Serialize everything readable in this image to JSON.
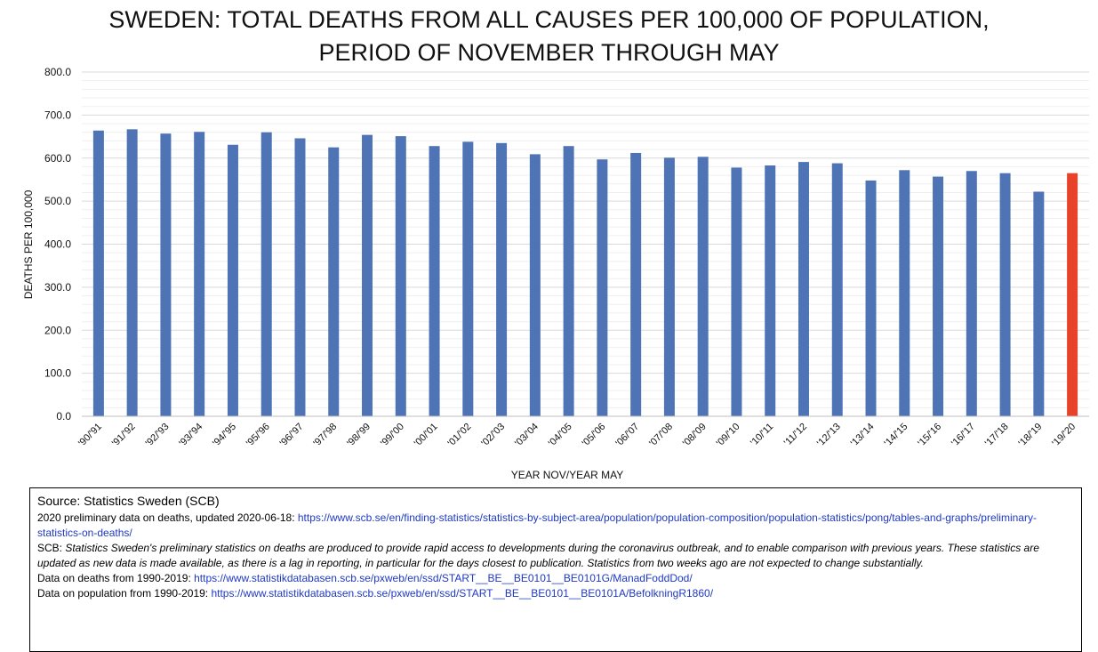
{
  "chart_data": {
    "type": "bar",
    "title_line1": "SWEDEN: TOTAL DEATHS FROM ALL CAUSES PER 100,000 OF POPULATION,",
    "title_line2": "PERIOD OF NOVEMBER THROUGH MAY",
    "xlabel": "YEAR NOV/YEAR MAY",
    "ylabel": "DEATHS PER 100,000",
    "ylim": [
      0,
      800
    ],
    "yticks": [
      "0.0",
      "100.0",
      "200.0",
      "300.0",
      "400.0",
      "500.0",
      "600.0",
      "700.0",
      "800.0"
    ],
    "grid": true,
    "categories": [
      "'90/'91",
      "'91/'92",
      "'92/'93",
      "'93/'94",
      "'94/'95",
      "'95/'96",
      "'96/'97",
      "'97/'98",
      "'98/'99",
      "'99/'00",
      "'00/'01",
      "'01/'02",
      "'02/'03",
      "'03/'04",
      "'04/'05",
      "'05/'06",
      "'06/'07",
      "'07/'08",
      "'08/'09",
      "'09/'10",
      "'10/'11",
      "'11/'12",
      "'12/'13",
      "'13/'14",
      "'14/'15",
      "'15/'16",
      "'16/'17",
      "'17/'18",
      "'18/'19",
      "'19/'20"
    ],
    "values": [
      664,
      667,
      657,
      661,
      631,
      660,
      646,
      625,
      654,
      651,
      628,
      638,
      635,
      609,
      628,
      597,
      612,
      601,
      603,
      578,
      583,
      591,
      588,
      548,
      572,
      557,
      570,
      565,
      522,
      565
    ],
    "bar_color": "#4f74b5",
    "highlight_color": "#e8432a",
    "highlight_index": 29
  },
  "source": {
    "heading": "Source: Statistics Sweden (SCB)",
    "line1_text": "2020 preliminary data on deaths, updated 2020-06-18: ",
    "line1_link": "https://www.scb.se/en/finding-statistics/statistics-by-subject-area/population/population-composition/population-statistics/pong/tables-and-graphs/preliminary-statistics-on-deaths/",
    "scb_prefix": "SCB: ",
    "scb_note": "Statistics Sweden's preliminary statistics on deaths are produced to provide rapid access to developments during the coronavirus outbreak, and to enable comparison with previous years. These statistics are updated as new data is made available, as there is a lag in reporting, in particular for the days closest to publication. Statistics from two weeks ago are not expected to change substantially.",
    "deaths_text": "Data on deaths from 1990-2019: ",
    "deaths_link": "https://www.statistikdatabasen.scb.se/pxweb/en/ssd/START__BE__BE0101__BE0101G/ManadFoddDod/",
    "pop_text": "Data on population from 1990-2019: ",
    "pop_link": "https://www.statistikdatabasen.scb.se/pxweb/en/ssd/START__BE__BE0101__BE0101A/BefolkningR1860/"
  }
}
